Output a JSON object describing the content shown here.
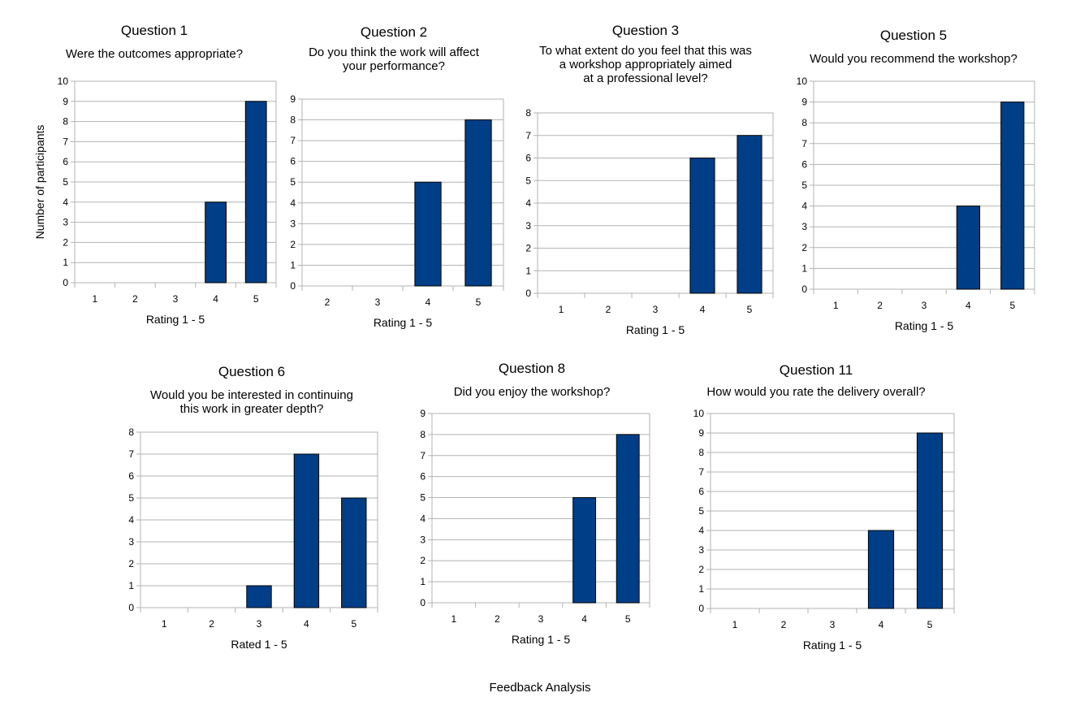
{
  "colors": {
    "bar": "#003f87",
    "grid": "#b3b3b3",
    "axis": "#b3b3b3"
  },
  "footer": "Feedback Analysis",
  "chart_data": [
    {
      "type": "bar",
      "title": "Question 1",
      "subtitle": "Were the outcomes appropriate?",
      "categories": [
        "1",
        "2",
        "3",
        "4",
        "5"
      ],
      "values": [
        0,
        0,
        0,
        4,
        9
      ],
      "xlabel": "Rating 1 - 5",
      "ylabel": "Number of participants",
      "ylim": [
        0,
        10
      ],
      "grid": true
    },
    {
      "type": "bar",
      "title": "Question 2",
      "subtitle": "Do you think the work will affect\nyour performance?",
      "categories": [
        "2",
        "3",
        "4",
        "5"
      ],
      "values": [
        0,
        0,
        5,
        8
      ],
      "xlabel": "Rating 1 - 5",
      "ylabel": "",
      "ylim": [
        0,
        9
      ],
      "grid": true
    },
    {
      "type": "bar",
      "title": "Question 3",
      "subtitle": "To what extent do you feel that this was\na workshop appropriately aimed\nat a professional level?",
      "categories": [
        "1",
        "2",
        "3",
        "4",
        "5"
      ],
      "values": [
        0,
        0,
        0,
        6,
        7
      ],
      "xlabel": "Rating 1 - 5",
      "ylabel": "",
      "ylim": [
        0,
        8
      ],
      "grid": true
    },
    {
      "type": "bar",
      "title": "Question 5",
      "subtitle": "Would you recommend the workshop?",
      "categories": [
        "1",
        "2",
        "3",
        "4",
        "5"
      ],
      "values": [
        0,
        0,
        0,
        4,
        9
      ],
      "xlabel": "Rating 1 - 5",
      "ylabel": "",
      "ylim": [
        0,
        10
      ],
      "grid": true
    },
    {
      "type": "bar",
      "title": "Question 6",
      "subtitle": "Would you be interested in continuing\nthis work in greater depth?",
      "categories": [
        "1",
        "2",
        "3",
        "4",
        "5"
      ],
      "values": [
        0,
        0,
        1,
        7,
        5
      ],
      "xlabel": "Rated 1 - 5",
      "ylabel": "",
      "ylim": [
        0,
        8
      ],
      "grid": true
    },
    {
      "type": "bar",
      "title": "Question 8",
      "subtitle": "Did you enjoy the workshop?",
      "categories": [
        "1",
        "2",
        "3",
        "4",
        "5"
      ],
      "values": [
        0,
        0,
        0,
        5,
        8
      ],
      "xlabel": "Rating 1 - 5",
      "ylabel": "",
      "ylim": [
        0,
        9
      ],
      "grid": true
    },
    {
      "type": "bar",
      "title": "Question 11",
      "subtitle": "How would you rate the delivery overall?",
      "categories": [
        "1",
        "2",
        "3",
        "4",
        "5"
      ],
      "values": [
        0,
        0,
        0,
        4,
        9
      ],
      "xlabel": "Rating 1 - 5",
      "ylabel": "",
      "ylim": [
        0,
        10
      ],
      "grid": true
    }
  ]
}
